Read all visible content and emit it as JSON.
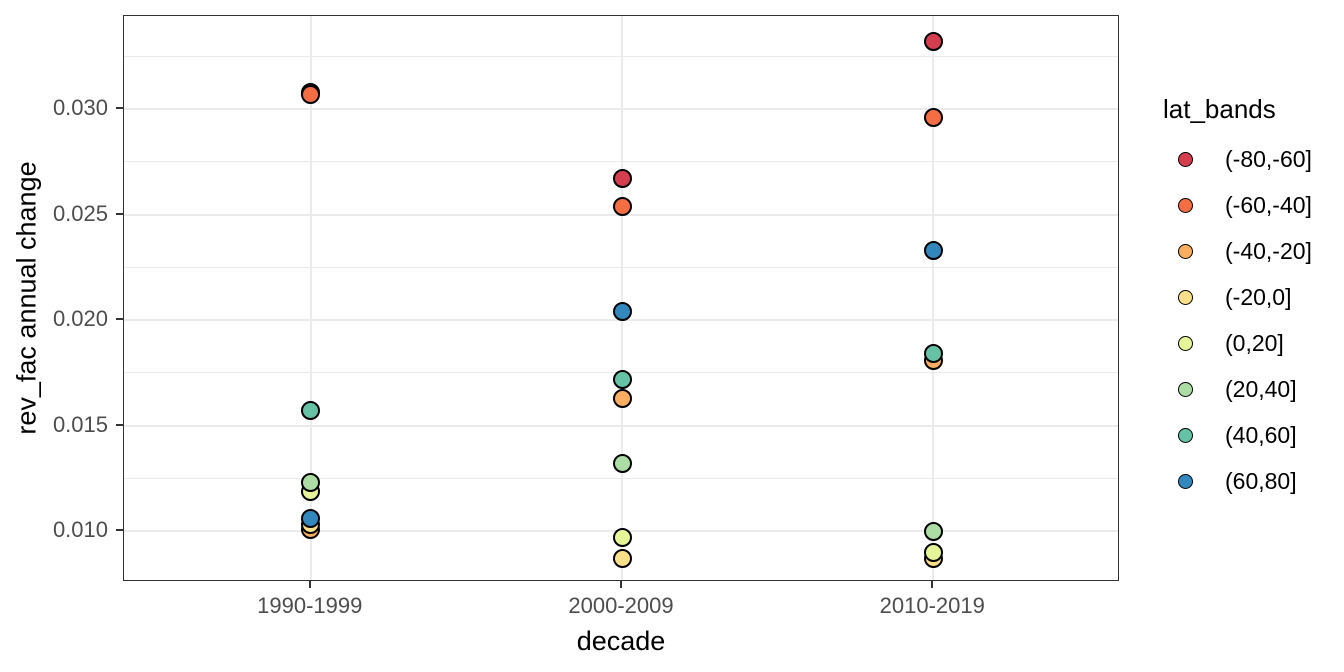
{
  "figure": {
    "background": "#FFFFFF",
    "panel_border_color": "#333333",
    "grid_color": "#EBEBEB",
    "tick_color": "#333333",
    "axis_text_color": "#4D4D4D",
    "title_text_color": "#000000",
    "point_outline_color": "#000000"
  },
  "chart_data": {
    "type": "scatter",
    "title": "",
    "xlabel": "decade",
    "ylabel": "rev_fac annual change",
    "categories": [
      "1990-1999",
      "2000-2009",
      "2010-2019"
    ],
    "y_ticks": [
      0.01,
      0.015,
      0.02,
      0.025,
      0.03
    ],
    "y_tick_labels": [
      "0.010",
      "0.015",
      "0.020",
      "0.025",
      "0.030"
    ],
    "y_minor_ticks": [
      0.0125,
      0.0175,
      0.0225,
      0.0275,
      0.0325
    ],
    "ylim": [
      0.0076,
      0.0344
    ],
    "grid": true,
    "legend_title": "lat_bands",
    "legend_position": "right",
    "series": [
      {
        "name": "(-80,-60]",
        "color": "#D53E4F",
        "values": [
          0.0308,
          0.0267,
          0.0332
        ]
      },
      {
        "name": "(-60,-40]",
        "color": "#F46D43",
        "values": [
          0.0307,
          0.0254,
          0.0296
        ]
      },
      {
        "name": "(-40,-20]",
        "color": "#FDAE61",
        "values": [
          0.0101,
          0.0163,
          0.0181
        ]
      },
      {
        "name": "(-20,0]",
        "color": "#FEE08B",
        "values": [
          0.0103,
          0.0087,
          0.0087
        ]
      },
      {
        "name": "(0,20]",
        "color": "#E6F598",
        "values": [
          0.0119,
          0.0097,
          0.009
        ]
      },
      {
        "name": "(20,40]",
        "color": "#ABDDA4",
        "values": [
          0.0123,
          0.0132,
          0.01
        ]
      },
      {
        "name": "(40,60]",
        "color": "#66C2A5",
        "values": [
          0.0157,
          0.0172,
          0.0184
        ]
      },
      {
        "name": "(60,80]",
        "color": "#3288BD",
        "values": [
          0.0106,
          0.0204,
          0.0233
        ]
      }
    ]
  }
}
